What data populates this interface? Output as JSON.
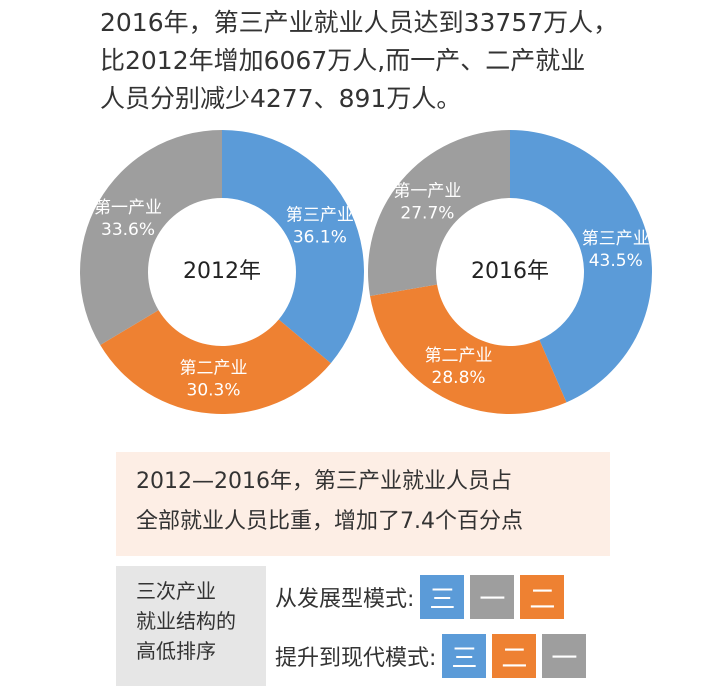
{
  "header": {
    "lines": [
      "2016年，第三产业就业人员达到33757万人，",
      "比2012年增加6067万人,而一产、二产就业",
      "人员分别减少4277、891万人。"
    ]
  },
  "chart_data": [
    {
      "type": "pie",
      "donut": true,
      "title": "2012年",
      "categories": [
        "第三产业",
        "第二产业",
        "第一产业"
      ],
      "values": [
        36.1,
        30.3,
        33.6
      ],
      "value_labels": [
        "36.1%",
        "30.3%",
        "33.6%"
      ],
      "colors": [
        "#5b9bd8",
        "#ee8132",
        "#9e9e9e"
      ]
    },
    {
      "type": "pie",
      "donut": true,
      "title": "2016年",
      "categories": [
        "第三产业",
        "第二产业",
        "第一产业"
      ],
      "values": [
        43.5,
        28.8,
        27.7
      ],
      "value_labels": [
        "43.5%",
        "28.8%",
        "27.7%"
      ],
      "colors": [
        "#5b9bd8",
        "#ee8132",
        "#9e9e9e"
      ]
    }
  ],
  "note": {
    "lines": [
      "2012—2016年，第三产业就业人员占",
      "全部就业人员比重，增加了7.4个百分点"
    ]
  },
  "ranking": {
    "label": [
      "三次产业",
      "就业结构的",
      "高低排序"
    ],
    "rows": [
      {
        "mode": "从发展型模式:",
        "order": [
          "三",
          "一",
          "二"
        ]
      },
      {
        "mode": "提升到现代模式:",
        "order": [
          "三",
          "二",
          "一"
        ]
      }
    ]
  }
}
